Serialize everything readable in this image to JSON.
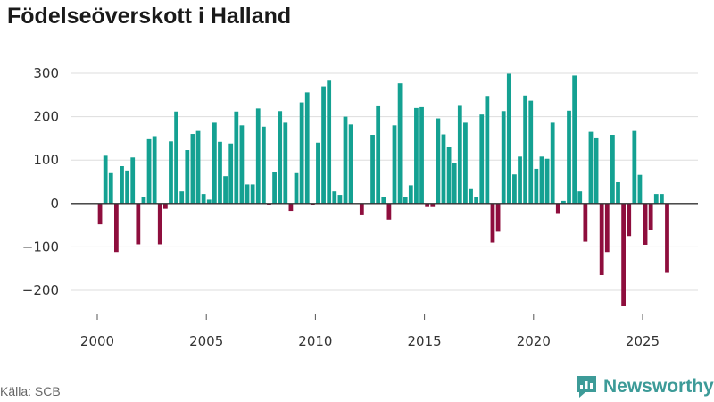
{
  "title": "Födelseöverskott i Halland",
  "source": "Källa: SCB",
  "logo": {
    "text": "Newsworthy",
    "icon": "newsworthy-logo-icon"
  },
  "colors": {
    "positive": "#14a192",
    "negative": "#8e0e3d",
    "grid": "#dddddd",
    "zero": "#333333",
    "brand": "#3d9b98"
  },
  "chart_data": {
    "type": "bar",
    "title": "Födelseöverskott i Halland",
    "xlabel": "",
    "ylabel": "",
    "x_ticks": [
      2000,
      2005,
      2010,
      2015,
      2020,
      2025
    ],
    "y_ticks": [
      -200,
      -100,
      0,
      100,
      200,
      300
    ],
    "xlim": [
      1999,
      2027
    ],
    "ylim": [
      -240,
      305
    ],
    "grid": true,
    "legend": "none",
    "series": [
      {
        "frequency": "quarterly",
        "start": "2000 Q1",
        "values": [
          -48,
          110,
          70,
          -112,
          86,
          76,
          106,
          -94,
          14,
          148,
          155,
          -94,
          -12,
          143,
          212,
          28,
          123,
          160,
          167,
          22,
          9,
          186,
          142,
          63,
          138,
          212,
          180,
          44,
          44,
          219,
          177,
          -4,
          73,
          213,
          186,
          -17,
          70,
          233,
          256,
          -4,
          140,
          270,
          283,
          28,
          20,
          200,
          182,
          0,
          -27,
          0,
          158,
          224,
          14,
          -37,
          180,
          277,
          16,
          42,
          220,
          222,
          -8,
          -8,
          196,
          159,
          130,
          94,
          225,
          186,
          33,
          15,
          205,
          246,
          -90,
          -65,
          213,
          299,
          67,
          108,
          249,
          237,
          80,
          108,
          103,
          186,
          -22,
          6,
          214,
          295,
          28,
          -88,
          165,
          152,
          -165,
          -112,
          158,
          49,
          -236,
          -75,
          167,
          66,
          -95,
          -61,
          22,
          22,
          -160
        ]
      }
    ]
  }
}
